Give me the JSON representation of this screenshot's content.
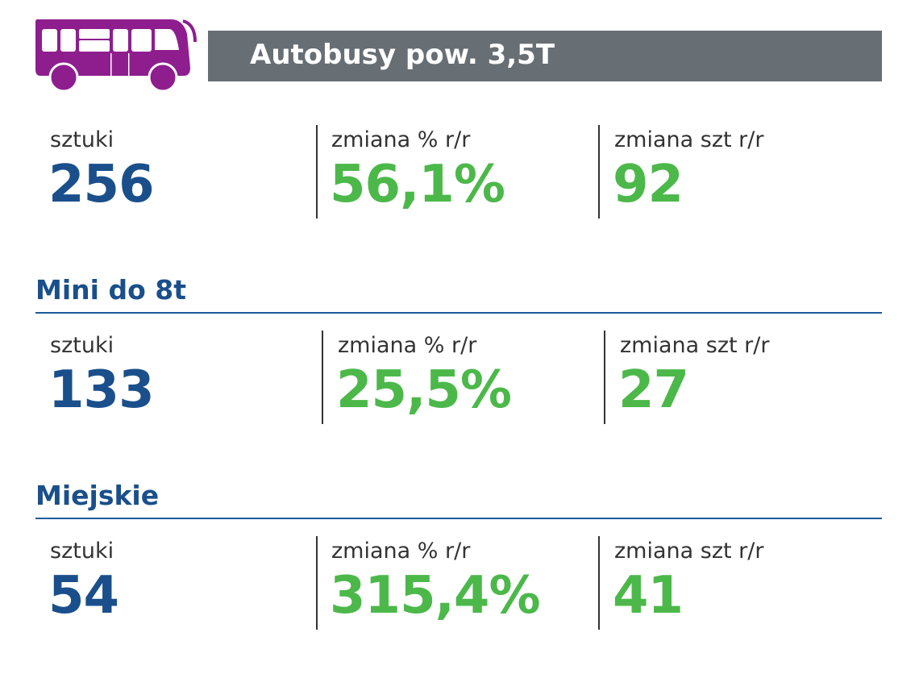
{
  "header": {
    "title": "Autobusy pow. 3,5T",
    "icon": "bus-icon",
    "icon_color": "#8e1e8e",
    "bar_color": "#676e74"
  },
  "colors": {
    "value_blue": "#1a4f8b",
    "value_green": "#4cb84a"
  },
  "sections": [
    {
      "title": "",
      "labels": [
        "sztuki",
        "zmiana % r/r",
        "zmiana szt r/r"
      ],
      "values": [
        "256",
        "56,1%",
        "92"
      ]
    },
    {
      "title": "Mini do 8t",
      "labels": [
        "sztuki",
        "zmiana % r/r",
        "zmiana szt r/r"
      ],
      "values": [
        "133",
        "25,5%",
        "27"
      ]
    },
    {
      "title": "Miejskie",
      "labels": [
        "sztuki",
        "zmiana % r/r",
        "zmiana szt r/r"
      ],
      "values": [
        "54",
        "315,4%",
        "41"
      ]
    }
  ]
}
